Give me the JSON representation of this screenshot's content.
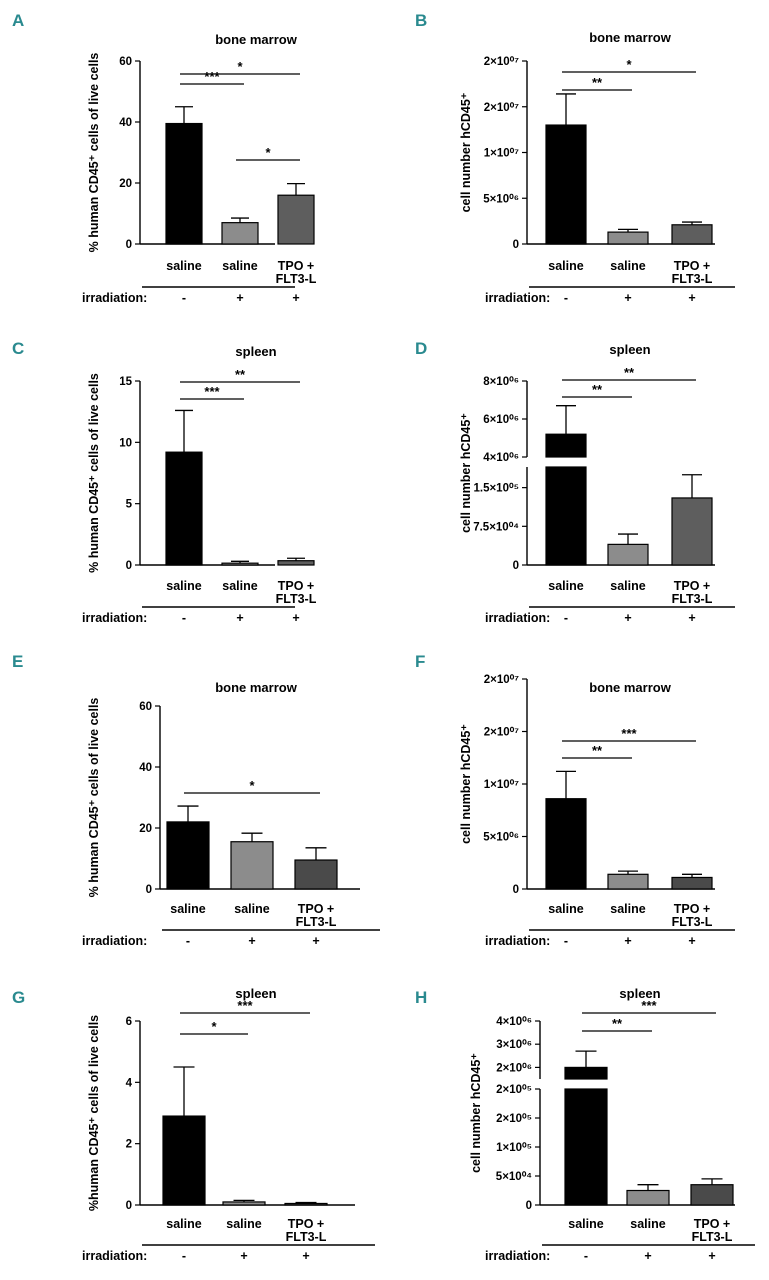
{
  "figure": {
    "irradiation_label": "irradiation:",
    "irradiation_marks": [
      "-",
      "+",
      "+"
    ]
  },
  "chart_data": [
    {
      "panel": "A",
      "type": "bar",
      "title": "bone marrow",
      "ylabel": "% human CD45⁺ cells of live cells",
      "categories": [
        [
          "saline"
        ],
        [
          "saline"
        ],
        [
          "TPO +",
          "FLT3-L"
        ]
      ],
      "values": [
        39.5,
        7,
        16
      ],
      "errors": [
        5.5,
        1.5,
        3.8
      ],
      "colors": [
        "#000000",
        "#8c8c8c",
        "#5e5e5e"
      ],
      "ylim": [
        0,
        60
      ],
      "yticks": [
        "0",
        "20",
        "40",
        "60"
      ],
      "significance": [
        {
          "from": 0,
          "to": 1,
          "label": "***"
        },
        {
          "from": 0,
          "to": 2,
          "label": "*"
        },
        {
          "from": 1,
          "to": 2,
          "label": "*"
        }
      ]
    },
    {
      "panel": "B",
      "type": "bar",
      "title": "bone marrow",
      "ylabel": "cell number hCD45⁺",
      "categories": [
        [
          "saline"
        ],
        [
          "saline"
        ],
        [
          "TPO +",
          "FLT3-L"
        ]
      ],
      "values": [
        13000000,
        1300000,
        2100000
      ],
      "errors": [
        3400000,
        300000,
        300000
      ],
      "colors": [
        "#000000",
        "#8c8c8c",
        "#5e5e5e"
      ],
      "ylim": [
        0,
        20000000
      ],
      "yticks": [
        "0",
        "5×10⁰⁶",
        "1×10⁰⁷",
        "2×10⁰⁷",
        "2×10⁰⁷"
      ],
      "significance": [
        {
          "from": 0,
          "to": 1,
          "label": "**"
        },
        {
          "from": 0,
          "to": 2,
          "label": "*"
        }
      ]
    },
    {
      "panel": "C",
      "type": "bar",
      "title": "spleen",
      "ylabel": "% human CD45⁺ cells of live cells",
      "categories": [
        [
          "saline"
        ],
        [
          "saline"
        ],
        [
          "TPO +",
          "FLT3-L"
        ]
      ],
      "values": [
        9.2,
        0.15,
        0.35
      ],
      "errors": [
        3.4,
        0.15,
        0.2
      ],
      "colors": [
        "#000000",
        "#8c8c8c",
        "#5e5e5e"
      ],
      "ylim": [
        0,
        15
      ],
      "yticks": [
        "0",
        "5",
        "10",
        "15"
      ],
      "significance": [
        {
          "from": 0,
          "to": 1,
          "label": "***"
        },
        {
          "from": 0,
          "to": 2,
          "label": "**"
        }
      ]
    },
    {
      "panel": "D",
      "type": "bar",
      "title": "spleen",
      "ylabel": "cell number hCD45⁺",
      "categories": [
        [
          "saline"
        ],
        [
          "saline"
        ],
        [
          "TPO +",
          "FLT3-L"
        ]
      ],
      "values": [
        5200000,
        40000,
        130000
      ],
      "errors": [
        1500000,
        20000,
        45000
      ],
      "colors": [
        "#000000",
        "#8c8c8c",
        "#5e5e5e"
      ],
      "broken_axis": true,
      "lower_ylim": [
        0,
        190000
      ],
      "lower_ticks": [
        0,
        75000,
        150000
      ],
      "lower_tick_labels": [
        "0",
        "7.5×10⁰⁴",
        "1.5×10⁰⁵"
      ],
      "upper_ylim": [
        4000000,
        8000000
      ],
      "upper_ticks": [
        4000000,
        6000000,
        8000000
      ],
      "upper_tick_labels": [
        "4×10⁰⁶",
        "6×10⁰⁶",
        "8×10⁰⁶"
      ],
      "significance": [
        {
          "from": 0,
          "to": 1,
          "label": "**"
        },
        {
          "from": 0,
          "to": 2,
          "label": "**"
        }
      ]
    },
    {
      "panel": "E",
      "type": "bar",
      "title": "bone marrow",
      "ylabel": "% human CD45⁺ cells of live cells",
      "categories": [
        [
          "saline"
        ],
        [
          "saline"
        ],
        [
          "TPO +",
          "FLT3-L"
        ]
      ],
      "values": [
        22,
        15.5,
        9.5
      ],
      "errors": [
        5.2,
        2.8,
        4
      ],
      "colors": [
        "#000000",
        "#8c8c8c",
        "#4a4a4a"
      ],
      "ylim": [
        0,
        60
      ],
      "yticks": [
        "0",
        "20",
        "40",
        "60"
      ],
      "significance": [
        {
          "from": 0,
          "to": 2,
          "label": "*"
        }
      ]
    },
    {
      "panel": "F",
      "type": "bar",
      "title": "bone marrow",
      "ylabel": "cell number hCD45⁺",
      "categories": [
        [
          "saline"
        ],
        [
          "saline"
        ],
        [
          "TPO +",
          "FLT3-L"
        ]
      ],
      "values": [
        8600000,
        1400000,
        1100000
      ],
      "errors": [
        2600000,
        300000,
        300000
      ],
      "colors": [
        "#000000",
        "#8c8c8c",
        "#4a4a4a"
      ],
      "ylim": [
        0,
        20000000
      ],
      "yticks": [
        "0",
        "5×10⁰⁶",
        "1×10⁰⁷",
        "2×10⁰⁷",
        "2×10⁰⁷"
      ],
      "significance": [
        {
          "from": 0,
          "to": 1,
          "label": "**"
        },
        {
          "from": 0,
          "to": 2,
          "label": "***"
        }
      ]
    },
    {
      "panel": "G",
      "type": "bar",
      "title": "spleen",
      "ylabel": "%human CD45⁺ cells of live cells",
      "categories": [
        [
          "saline"
        ],
        [
          "saline"
        ],
        [
          "TPO +",
          "FLT3-L"
        ]
      ],
      "values": [
        2.9,
        0.1,
        0.05
      ],
      "errors": [
        1.6,
        0.05,
        0.03
      ],
      "colors": [
        "#000000",
        "#8c8c8c",
        "#4a4a4a"
      ],
      "ylim": [
        0,
        6
      ],
      "yticks": [
        "0",
        "2",
        "4",
        "6"
      ],
      "significance": [
        {
          "from": 0,
          "to": 1,
          "label": "*"
        },
        {
          "from": 0,
          "to": 2,
          "label": "***"
        }
      ]
    },
    {
      "panel": "H",
      "type": "bar",
      "title": "spleen",
      "ylabel": "cell number hCD45⁺",
      "categories": [
        [
          "saline"
        ],
        [
          "saline"
        ],
        [
          "TPO +",
          "FLT3-L"
        ]
      ],
      "values": [
        2000000,
        25000,
        35000
      ],
      "errors": [
        700000,
        10000,
        10000
      ],
      "colors": [
        "#000000",
        "#8c8c8c",
        "#4a4a4a"
      ],
      "broken_axis": true,
      "lower_ylim": [
        0,
        200000
      ],
      "lower_ticks": [
        0,
        50000,
        100000,
        150000,
        200000
      ],
      "lower_tick_labels": [
        "0",
        "5×10⁰⁴",
        "1×10⁰⁵",
        "2×10⁰⁵",
        "2×10⁰⁵"
      ],
      "upper_ylim": [
        1500000,
        4000000
      ],
      "upper_ticks": [
        2000000,
        3000000,
        4000000
      ],
      "upper_tick_labels": [
        "2×10⁰⁶",
        "3×10⁰⁶",
        "4×10⁰⁶"
      ],
      "significance": [
        {
          "from": 0,
          "to": 1,
          "label": "**"
        },
        {
          "from": 0,
          "to": 2,
          "label": "***"
        }
      ]
    }
  ]
}
